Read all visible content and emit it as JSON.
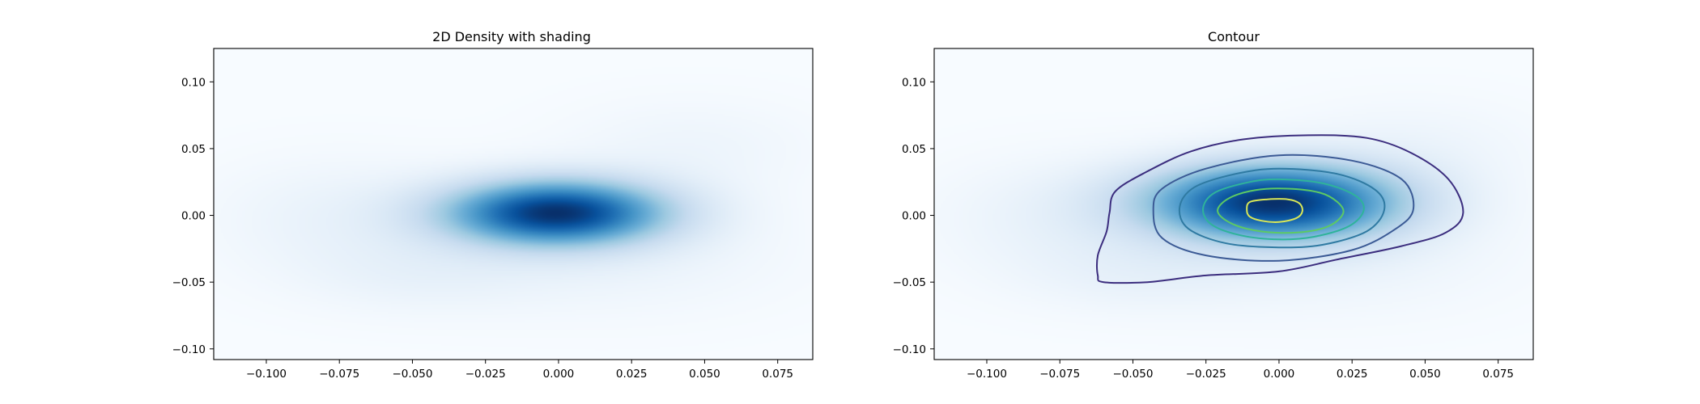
{
  "chart_data": [
    {
      "type": "heatmap",
      "title": "2D Density with shading",
      "xlabel": "",
      "ylabel": "",
      "xlim": [
        -0.118,
        0.087
      ],
      "ylim": [
        -0.108,
        0.125
      ],
      "xticks": [
        -0.1,
        -0.075,
        -0.05,
        -0.025,
        0.0,
        0.025,
        0.05,
        0.075
      ],
      "xtick_labels": [
        "−0.100",
        "−0.075",
        "−0.050",
        "−0.025",
        "0.000",
        "0.025",
        "0.050",
        "0.075"
      ],
      "yticks": [
        -0.1,
        -0.05,
        0.0,
        0.05,
        0.1
      ],
      "ytick_labels": [
        "−0.10",
        "−0.05",
        "0.00",
        "0.05",
        "0.10"
      ],
      "colormap": "Blues",
      "density_components": [
        {
          "mx": -0.001,
          "my": 0.002,
          "sx": 0.026,
          "sy": 0.017,
          "w": 1.0
        },
        {
          "mx": -0.075,
          "my": -0.002,
          "sx": 0.03,
          "sy": 0.03,
          "w": 0.07
        },
        {
          "mx": -0.045,
          "my": -0.045,
          "sx": 0.03,
          "sy": 0.02,
          "w": 0.06
        },
        {
          "mx": 0.045,
          "my": 0.05,
          "sx": 0.03,
          "sy": 0.025,
          "w": 0.05
        },
        {
          "mx": 0.02,
          "my": -0.03,
          "sx": 0.04,
          "sy": 0.03,
          "w": 0.06
        }
      ],
      "grid": false
    },
    {
      "type": "contour",
      "title": "Contour",
      "xlabel": "",
      "ylabel": "",
      "xlim": [
        -0.118,
        0.087
      ],
      "ylim": [
        -0.108,
        0.125
      ],
      "xticks": [
        -0.1,
        -0.075,
        -0.05,
        -0.025,
        0.0,
        0.025,
        0.05,
        0.075
      ],
      "xtick_labels": [
        "−0.100",
        "−0.075",
        "−0.050",
        "−0.025",
        "0.000",
        "0.025",
        "0.050",
        "0.075"
      ],
      "yticks": [
        -0.1,
        -0.05,
        0.0,
        0.05,
        0.1
      ],
      "ytick_labels": [
        "−0.10",
        "−0.05",
        "0.00",
        "0.05",
        "0.10"
      ],
      "colormap": "Blues",
      "density_components": [
        {
          "mx": -0.002,
          "my": 0.01,
          "sx": 0.03,
          "sy": 0.02,
          "w": 1.0
        },
        {
          "mx": -0.075,
          "my": -0.002,
          "sx": 0.03,
          "sy": 0.03,
          "w": 0.07
        },
        {
          "mx": -0.045,
          "my": -0.045,
          "sx": 0.03,
          "sy": 0.02,
          "w": 0.06
        },
        {
          "mx": 0.045,
          "my": 0.05,
          "sx": 0.03,
          "sy": 0.025,
          "w": 0.05
        },
        {
          "mx": 0.02,
          "my": -0.03,
          "sx": 0.04,
          "sy": 0.03,
          "w": 0.06
        }
      ],
      "contours": [
        {
          "level": 1,
          "color": "#3b2d7e",
          "points": [
            [
              -0.058,
              0.002
            ],
            [
              -0.056,
              0.018
            ],
            [
              -0.045,
              0.033
            ],
            [
              -0.03,
              0.048
            ],
            [
              -0.012,
              0.057
            ],
            [
              0.01,
              0.06
            ],
            [
              0.03,
              0.058
            ],
            [
              0.045,
              0.047
            ],
            [
              0.058,
              0.027
            ],
            [
              0.063,
              0.002
            ],
            [
              0.057,
              -0.013
            ],
            [
              0.042,
              -0.023
            ],
            [
              0.02,
              -0.033
            ],
            [
              0.0,
              -0.042
            ],
            [
              -0.025,
              -0.045
            ],
            [
              -0.045,
              -0.05
            ],
            [
              -0.06,
              -0.05
            ],
            [
              -0.062,
              -0.045
            ],
            [
              -0.062,
              -0.03
            ],
            [
              -0.059,
              -0.012
            ]
          ]
        },
        {
          "level": 2,
          "color": "#3b5a95",
          "points": [
            [
              -0.043,
              0.004
            ],
            [
              -0.04,
              0.02
            ],
            [
              -0.025,
              0.035
            ],
            [
              0.0,
              0.045
            ],
            [
              0.025,
              0.041
            ],
            [
              0.042,
              0.027
            ],
            [
              0.046,
              0.005
            ],
            [
              0.04,
              -0.01
            ],
            [
              0.025,
              -0.026
            ],
            [
              0.0,
              -0.034
            ],
            [
              -0.025,
              -0.03
            ],
            [
              -0.04,
              -0.017
            ]
          ]
        },
        {
          "level": 3,
          "color": "#2f7aa2",
          "points": [
            [
              -0.034,
              0.006
            ],
            [
              -0.029,
              0.021
            ],
            [
              -0.015,
              0.031
            ],
            [
              0.0,
              0.035
            ],
            [
              0.02,
              0.031
            ],
            [
              0.033,
              0.019
            ],
            [
              0.036,
              0.004
            ],
            [
              0.03,
              -0.012
            ],
            [
              0.015,
              -0.022
            ],
            [
              0.0,
              -0.024
            ],
            [
              -0.018,
              -0.021
            ],
            [
              -0.031,
              -0.01
            ]
          ]
        },
        {
          "level": 4,
          "color": "#2fb39b",
          "points": [
            [
              -0.026,
              0.005
            ],
            [
              -0.022,
              0.017
            ],
            [
              -0.01,
              0.025
            ],
            [
              0.0,
              0.027
            ],
            [
              0.015,
              0.024
            ],
            [
              0.026,
              0.015
            ],
            [
              0.029,
              0.004
            ],
            [
              0.024,
              -0.008
            ],
            [
              0.012,
              -0.016
            ],
            [
              0.0,
              -0.018
            ],
            [
              -0.013,
              -0.015
            ],
            [
              -0.023,
              -0.007
            ]
          ]
        },
        {
          "level": 5,
          "color": "#5dc964",
          "points": [
            [
              -0.021,
              0.004
            ],
            [
              -0.017,
              0.013
            ],
            [
              -0.008,
              0.019
            ],
            [
              0.003,
              0.02
            ],
            [
              0.014,
              0.017
            ],
            [
              0.02,
              0.01
            ],
            [
              0.022,
              0.002
            ],
            [
              0.018,
              -0.007
            ],
            [
              0.01,
              -0.012
            ],
            [
              -0.001,
              -0.013
            ],
            [
              -0.011,
              -0.01
            ],
            [
              -0.018,
              -0.004
            ]
          ]
        },
        {
          "level": 6,
          "color": "#d9e757",
          "points": [
            [
              -0.011,
              0.004
            ],
            [
              -0.01,
              0.01
            ],
            [
              -0.004,
              0.012
            ],
            [
              0.003,
              0.012
            ],
            [
              0.007,
              0.009
            ],
            [
              0.008,
              0.003
            ],
            [
              0.006,
              -0.002
            ],
            [
              0.0,
              -0.005
            ],
            [
              -0.006,
              -0.004
            ],
            [
              -0.01,
              -0.001
            ]
          ]
        }
      ],
      "grid": false
    }
  ]
}
